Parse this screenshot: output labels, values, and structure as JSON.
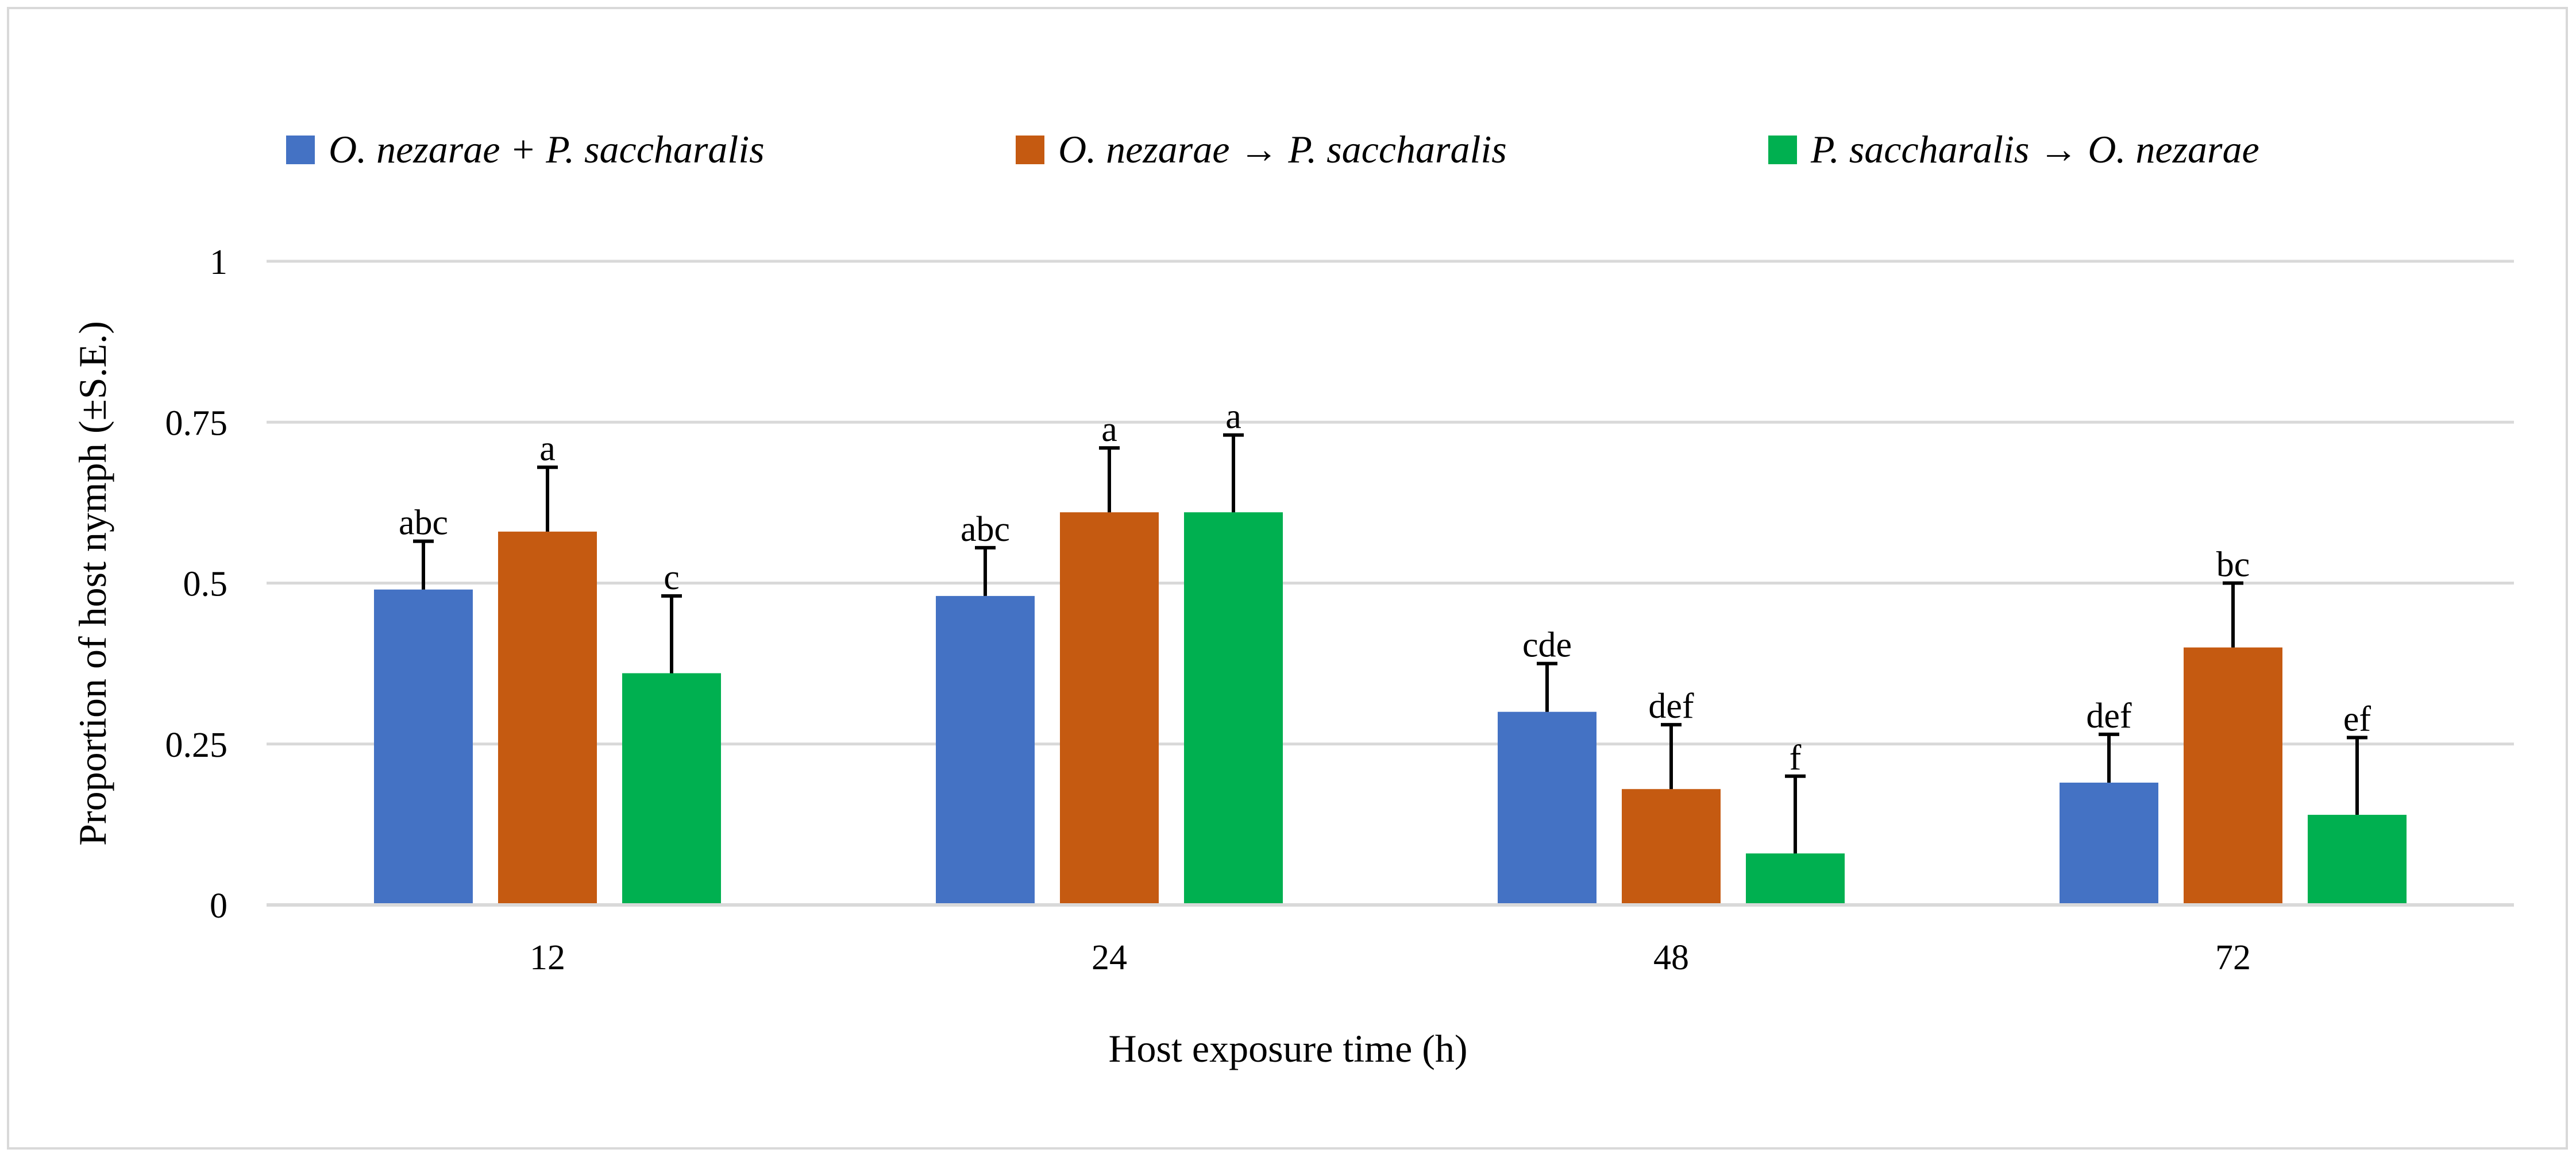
{
  "chart_data": {
    "type": "bar",
    "title": "",
    "xlabel": "Host exposure time (h)",
    "ylabel": "Proportion of host nymph (±S.E.)",
    "categories": [
      "12",
      "24",
      "48",
      "72"
    ],
    "ylim": [
      0,
      1
    ],
    "yticks": [
      {
        "value": 0,
        "label": "0"
      },
      {
        "value": 0.25,
        "label": "0.25"
      },
      {
        "value": 0.5,
        "label": "0.5"
      },
      {
        "value": 0.75,
        "label": "0.75"
      },
      {
        "value": 1,
        "label": "1"
      }
    ],
    "grid": true,
    "legend_position": "top",
    "series": [
      {
        "name": "O. nezarae + P. saccharalis",
        "color": "#4472c4",
        "values": [
          0.49,
          0.48,
          0.3,
          0.19
        ],
        "errors": [
          0.075,
          0.075,
          0.075,
          0.075
        ],
        "letters": [
          "abc",
          "abc",
          "cde",
          "def"
        ]
      },
      {
        "name": "O. nezarae → P. saccharalis",
        "color": "#c55a11",
        "values": [
          0.58,
          0.61,
          0.18,
          0.4
        ],
        "errors": [
          0.1,
          0.1,
          0.1,
          0.1
        ],
        "letters": [
          "a",
          "a",
          "def",
          "bc"
        ]
      },
      {
        "name": "P. saccharalis  → O. nezarae",
        "color": "#00b050",
        "values": [
          0.36,
          0.61,
          0.08,
          0.14
        ],
        "errors": [
          0.12,
          0.12,
          0.12,
          0.12
        ],
        "letters": [
          "c",
          "a",
          "f",
          "ef"
        ]
      }
    ]
  },
  "colors": {
    "grid": "#d9d9d9",
    "axis": "#d9d9d9",
    "text": "#000000",
    "error_bar": "#000000"
  }
}
